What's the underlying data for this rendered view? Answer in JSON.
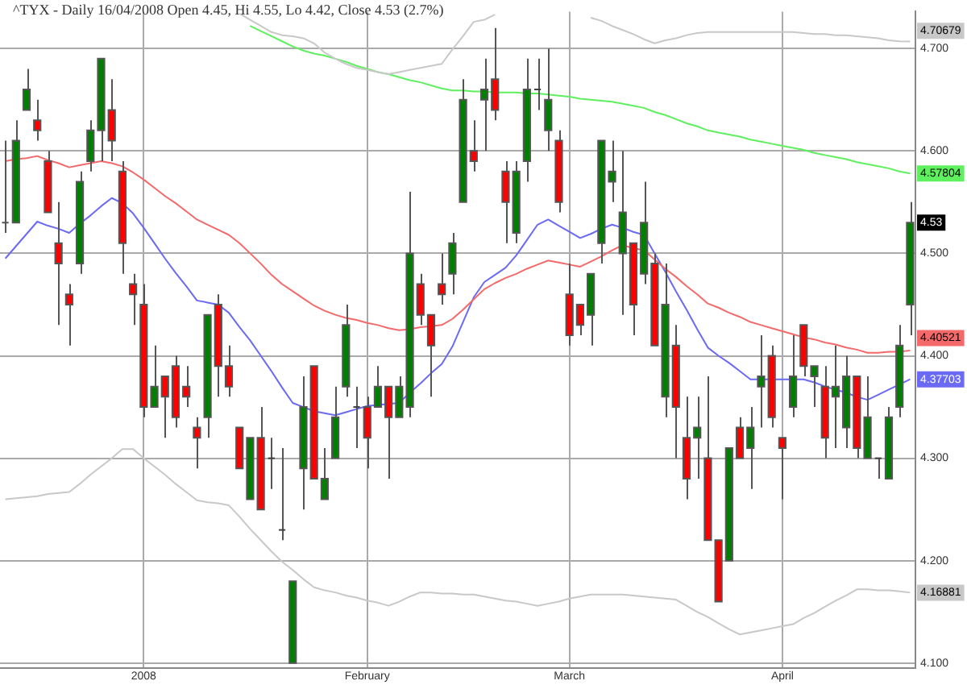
{
  "chart_data": {
    "type": "candlestick",
    "title": "^TYX - Daily 16/04/2008 Open 4.45, Hi 4.55, Lo 4.42, Close 4.53 (2.7%)",
    "categories": [
      null,
      null,
      null,
      null,
      null,
      null,
      null,
      null,
      null,
      null,
      null,
      null,
      null,
      "2008",
      null,
      null,
      null,
      null,
      null,
      null,
      null,
      null,
      null,
      null,
      null,
      null,
      null,
      null,
      null,
      null,
      null,
      null,
      null,
      null,
      "February",
      null,
      null,
      null,
      null,
      null,
      null,
      null,
      null,
      null,
      null,
      null,
      null,
      null,
      null,
      null,
      null,
      null,
      null,
      "March",
      null,
      null,
      null,
      null,
      null,
      null,
      null,
      null,
      null,
      null,
      null,
      null,
      null,
      null,
      null,
      null,
      null,
      null,
      null,
      "April",
      null,
      null,
      null,
      null,
      null,
      null,
      null,
      null,
      null,
      null,
      null,
      null
    ],
    "ohlc": [
      [
        4.53,
        4.61,
        4.52,
        4.53
      ],
      [
        4.53,
        4.63,
        4.53,
        4.61
      ],
      [
        4.64,
        4.68,
        4.64,
        4.66
      ],
      [
        4.63,
        4.65,
        4.61,
        4.62
      ],
      [
        4.59,
        4.6,
        4.54,
        4.54
      ],
      [
        4.51,
        4.55,
        4.43,
        4.49
      ],
      [
        4.46,
        4.47,
        4.41,
        4.45
      ],
      [
        4.49,
        4.58,
        4.48,
        4.57
      ],
      [
        4.59,
        4.63,
        4.58,
        4.62
      ],
      [
        4.62,
        4.69,
        4.59,
        4.69
      ],
      [
        4.64,
        4.67,
        4.59,
        4.61
      ],
      [
        4.58,
        4.59,
        4.48,
        4.51
      ],
      [
        4.47,
        4.48,
        4.43,
        4.46
      ],
      [
        4.45,
        4.47,
        4.34,
        4.35
      ],
      [
        4.35,
        4.41,
        4.35,
        4.37
      ],
      [
        4.38,
        4.38,
        4.32,
        4.36
      ],
      [
        4.39,
        4.4,
        4.33,
        4.34
      ],
      [
        4.37,
        4.39,
        4.35,
        4.36
      ],
      [
        4.33,
        4.34,
        4.29,
        4.32
      ],
      [
        4.34,
        4.44,
        4.32,
        4.44
      ],
      [
        4.45,
        4.46,
        4.36,
        4.39
      ],
      [
        4.39,
        4.41,
        4.36,
        4.37
      ],
      [
        4.33,
        4.33,
        4.29,
        4.29
      ],
      [
        4.26,
        4.32,
        4.26,
        4.32
      ],
      [
        4.32,
        4.35,
        4.25,
        4.25
      ],
      [
        4.3,
        4.32,
        4.27,
        4.3
      ],
      [
        4.23,
        4.31,
        4.22,
        4.23
      ],
      [
        4.1,
        4.18,
        4.1,
        4.18
      ],
      [
        4.29,
        4.38,
        4.25,
        4.35
      ],
      [
        4.39,
        4.39,
        4.28,
        4.28
      ],
      [
        4.26,
        4.31,
        4.26,
        4.28
      ],
      [
        4.3,
        4.37,
        4.3,
        4.34
      ],
      [
        4.37,
        4.45,
        4.36,
        4.43
      ],
      [
        4.35,
        4.37,
        4.31,
        4.35
      ],
      [
        4.35,
        4.36,
        4.29,
        4.32
      ],
      [
        4.35,
        4.39,
        4.35,
        4.37
      ],
      [
        4.37,
        4.37,
        4.28,
        4.34
      ],
      [
        4.34,
        4.38,
        4.34,
        4.37
      ],
      [
        4.35,
        4.56,
        4.34,
        4.5
      ],
      [
        4.47,
        4.48,
        4.43,
        4.44
      ],
      [
        4.44,
        4.44,
        4.36,
        4.41
      ],
      [
        4.47,
        4.5,
        4.45,
        4.46
      ],
      [
        4.48,
        4.52,
        4.46,
        4.51
      ],
      [
        4.55,
        4.67,
        4.55,
        4.65
      ],
      [
        4.6,
        4.63,
        4.58,
        4.59
      ],
      [
        4.65,
        4.69,
        4.6,
        4.66
      ],
      [
        4.67,
        4.72,
        4.63,
        4.64
      ],
      [
        4.58,
        4.59,
        4.51,
        4.55
      ],
      [
        4.52,
        4.59,
        4.51,
        4.58
      ],
      [
        4.59,
        4.69,
        4.57,
        4.66
      ],
      [
        4.66,
        4.69,
        4.64,
        4.66
      ],
      [
        4.62,
        4.7,
        4.6,
        4.65
      ],
      [
        4.61,
        4.62,
        4.54,
        4.55
      ],
      [
        4.46,
        4.49,
        4.41,
        4.42
      ],
      [
        4.45,
        4.45,
        4.42,
        4.43
      ],
      [
        4.44,
        4.48,
        4.41,
        4.48
      ],
      [
        4.51,
        4.61,
        4.49,
        4.61
      ],
      [
        4.57,
        4.61,
        4.55,
        4.58
      ],
      [
        4.5,
        4.6,
        4.44,
        4.54
      ],
      [
        4.51,
        4.51,
        4.42,
        4.45
      ],
      [
        4.48,
        4.57,
        4.47,
        4.53
      ],
      [
        4.49,
        4.5,
        4.41,
        4.41
      ],
      [
        4.36,
        4.49,
        4.34,
        4.45
      ],
      [
        4.41,
        4.43,
        4.3,
        4.35
      ],
      [
        4.32,
        4.36,
        4.26,
        4.28
      ],
      [
        4.32,
        4.36,
        4.28,
        4.33
      ],
      [
        4.3,
        4.38,
        4.22,
        4.22
      ],
      [
        4.22,
        4.22,
        4.16,
        4.16
      ],
      [
        4.2,
        4.31,
        4.2,
        4.31
      ],
      [
        4.33,
        4.34,
        4.3,
        4.3
      ],
      [
        4.31,
        4.35,
        4.27,
        4.33
      ],
      [
        4.37,
        4.42,
        4.33,
        4.38
      ],
      [
        4.4,
        4.41,
        4.33,
        4.34
      ],
      [
        4.32,
        4.32,
        4.26,
        4.31
      ],
      [
        4.35,
        4.42,
        4.34,
        4.38
      ],
      [
        4.43,
        4.43,
        4.38,
        4.39
      ],
      [
        4.38,
        4.39,
        4.35,
        4.39
      ],
      [
        4.37,
        4.39,
        4.3,
        4.32
      ],
      [
        4.36,
        4.41,
        4.31,
        4.37
      ],
      [
        4.33,
        4.4,
        4.31,
        4.38
      ],
      [
        4.38,
        4.38,
        4.3,
        4.31
      ],
      [
        4.3,
        4.38,
        4.3,
        4.34
      ],
      [
        4.3,
        4.3,
        4.28,
        4.3
      ],
      [
        4.28,
        4.35,
        4.28,
        4.34
      ],
      [
        4.35,
        4.43,
        4.34,
        4.41
      ],
      [
        4.45,
        4.55,
        4.42,
        4.53
      ]
    ],
    "colors": [
      "#555555",
      "#008000",
      "#008000",
      "#ff0000",
      "#ff0000",
      "#ff0000",
      "#ff0000",
      "#008000",
      "#008000",
      "#008000",
      "#ff0000",
      "#ff0000",
      "#ff0000",
      "#ff0000",
      "#008000",
      "#ff0000",
      "#ff0000",
      "#ff0000",
      "#ff0000",
      "#008000",
      "#ff0000",
      "#ff0000",
      "#ff0000",
      "#008000",
      "#ff0000",
      "#404040",
      "#404040",
      "#008000",
      "#008000",
      "#ff0000",
      "#008000",
      "#008000",
      "#008000",
      "#404040",
      "#ff0000",
      "#008000",
      "#ff0000",
      "#008000",
      "#008000",
      "#ff0000",
      "#ff0000",
      "#ff0000",
      "#008000",
      "#008000",
      "#ff0000",
      "#008000",
      "#ff0000",
      "#ff0000",
      "#008000",
      "#008000",
      "#404040",
      "#008000",
      "#ff0000",
      "#ff0000",
      "#ff0000",
      "#008000",
      "#008000",
      "#008000",
      "#008000",
      "#ff0000",
      "#008000",
      "#ff0000",
      "#008000",
      "#ff0000",
      "#ff0000",
      "#008000",
      "#ff0000",
      "#ff0000",
      "#008000",
      "#ff0000",
      "#008000",
      "#008000",
      "#ff0000",
      "#ff0000",
      "#008000",
      "#ff0000",
      "#008000",
      "#ff0000",
      "#008000",
      "#008000",
      "#ff0000",
      "#008000",
      "#404040",
      "#008000",
      "#008000",
      "#008000"
    ],
    "value_labels": [
      null,
      null,
      null,
      null,
      null,
      null,
      null,
      null,
      null,
      null,
      null,
      null,
      null,
      null,
      null,
      null,
      null,
      null,
      null,
      null,
      null,
      null,
      null,
      null,
      null,
      null,
      null,
      null,
      null,
      null,
      null,
      null,
      null,
      null,
      null,
      null,
      null,
      null,
      null,
      null,
      null,
      null,
      null,
      null,
      null,
      null,
      null,
      null,
      null,
      null,
      null,
      null,
      null,
      null,
      null,
      null,
      null,
      null,
      null,
      null,
      null,
      null,
      null,
      null,
      null,
      null,
      null,
      null,
      null,
      null,
      null,
      null,
      null,
      null,
      null,
      null,
      null,
      null,
      null,
      null,
      null,
      null,
      null,
      null,
      null,
      "4.53"
    ],
    "series": [
      {
        "type": "line",
        "color": "#c8c8c8",
        "values": [
          null,
          null,
          null,
          null,
          null,
          null,
          null,
          null,
          null,
          null,
          null,
          null,
          null,
          null,
          null,
          null,
          null,
          null,
          null,
          null,
          null,
          null,
          4.734,
          4.728,
          4.722,
          4.716,
          4.713,
          4.712,
          4.71,
          4.705,
          4.696,
          4.69,
          4.685,
          4.681,
          4.679,
          4.677,
          4.675,
          4.677,
          4.679,
          4.681,
          4.683,
          4.685,
          4.699,
          4.712,
          4.726,
          4.728,
          4.733,
          null,
          null,
          null,
          null,
          null,
          null,
          null,
          null,
          4.73,
          4.727,
          4.722,
          4.718,
          4.714,
          4.709,
          4.705,
          4.708,
          4.71,
          4.713,
          4.715,
          4.716,
          4.716,
          4.716,
          4.716,
          4.716,
          4.716,
          4.716,
          4.716,
          4.716,
          4.715,
          4.714,
          4.714,
          4.713,
          4.713,
          4.712,
          4.711,
          4.71,
          4.708,
          4.707,
          4.70679
        ],
        "value_labels": [
          null,
          null,
          null,
          null,
          null,
          null,
          null,
          null,
          null,
          null,
          null,
          null,
          null,
          null,
          null,
          null,
          null,
          null,
          null,
          null,
          null,
          null,
          null,
          null,
          null,
          null,
          null,
          null,
          null,
          null,
          null,
          null,
          null,
          null,
          null,
          null,
          null,
          null,
          null,
          null,
          null,
          null,
          null,
          null,
          null,
          null,
          null,
          null,
          null,
          null,
          null,
          null,
          null,
          null,
          null,
          null,
          null,
          null,
          null,
          null,
          null,
          null,
          null,
          null,
          null,
          null,
          null,
          null,
          null,
          null,
          null,
          null,
          null,
          null,
          null,
          null,
          null,
          null,
          null,
          null,
          null,
          null,
          null,
          null,
          null,
          "4.70679"
        ]
      },
      {
        "type": "line",
        "color": "#5ef05e",
        "values": [
          null,
          null,
          null,
          null,
          null,
          null,
          null,
          null,
          null,
          null,
          null,
          null,
          null,
          null,
          null,
          null,
          null,
          null,
          null,
          null,
          null,
          null,
          null,
          4.722,
          4.717,
          4.712,
          4.707,
          4.702,
          4.698,
          4.695,
          4.693,
          4.69,
          4.687,
          4.683,
          4.68,
          4.677,
          4.675,
          4.672,
          4.669,
          4.667,
          4.664,
          4.661,
          4.659,
          4.659,
          4.658,
          4.658,
          4.657,
          4.657,
          4.657,
          4.656,
          4.656,
          4.655,
          4.654,
          4.653,
          4.651,
          4.65,
          4.649,
          4.648,
          4.646,
          4.644,
          4.642,
          4.638,
          4.635,
          4.631,
          4.627,
          4.624,
          4.62,
          4.618,
          4.616,
          4.614,
          4.611,
          4.609,
          4.607,
          4.605,
          4.603,
          4.601,
          4.598,
          4.596,
          4.594,
          4.592,
          4.589,
          4.587,
          4.585,
          4.583,
          4.58,
          4.57804
        ],
        "value_labels": [
          null,
          null,
          null,
          null,
          null,
          null,
          null,
          null,
          null,
          null,
          null,
          null,
          null,
          null,
          null,
          null,
          null,
          null,
          null,
          null,
          null,
          null,
          null,
          null,
          null,
          null,
          null,
          null,
          null,
          null,
          null,
          null,
          null,
          null,
          null,
          null,
          null,
          null,
          null,
          null,
          null,
          null,
          null,
          null,
          null,
          null,
          null,
          null,
          null,
          null,
          null,
          null,
          null,
          null,
          null,
          null,
          null,
          null,
          null,
          null,
          null,
          null,
          null,
          null,
          null,
          null,
          null,
          null,
          null,
          null,
          null,
          null,
          null,
          null,
          null,
          null,
          null,
          null,
          null,
          null,
          null,
          null,
          null,
          null,
          null,
          "4.57804"
        ]
      },
      {
        "type": "line",
        "color": "#f46a6a",
        "values": [
          4.59,
          4.592,
          4.593,
          4.595,
          4.591,
          4.588,
          4.584,
          4.586,
          4.588,
          4.59,
          4.588,
          4.585,
          4.579,
          4.572,
          4.564,
          4.556,
          4.549,
          4.541,
          4.533,
          4.528,
          4.523,
          4.518,
          4.51,
          4.5,
          4.49,
          4.479,
          4.47,
          4.463,
          4.456,
          4.449,
          4.444,
          4.44,
          4.437,
          4.435,
          4.432,
          4.43,
          4.427,
          4.425,
          4.426,
          4.428,
          4.429,
          4.43,
          4.436,
          4.445,
          4.455,
          4.465,
          4.471,
          4.476,
          4.48,
          4.485,
          4.489,
          4.493,
          4.491,
          4.489,
          4.487,
          4.492,
          4.497,
          4.503,
          4.508,
          4.505,
          4.503,
          4.494,
          4.485,
          4.477,
          4.468,
          4.46,
          4.451,
          4.447,
          4.442,
          4.438,
          4.433,
          4.43,
          4.427,
          4.424,
          4.421,
          4.418,
          4.416,
          4.413,
          4.411,
          4.408,
          4.406,
          4.403,
          4.403,
          4.404,
          4.404,
          4.40521
        ],
        "value_labels": [
          null,
          null,
          null,
          null,
          null,
          null,
          null,
          null,
          null,
          null,
          null,
          null,
          null,
          null,
          null,
          null,
          null,
          null,
          null,
          null,
          null,
          null,
          null,
          null,
          null,
          null,
          null,
          null,
          null,
          null,
          null,
          null,
          null,
          null,
          null,
          null,
          null,
          null,
          null,
          null,
          null,
          null,
          null,
          null,
          null,
          null,
          null,
          null,
          null,
          null,
          null,
          null,
          null,
          null,
          null,
          null,
          null,
          null,
          null,
          null,
          null,
          null,
          null,
          null,
          null,
          null,
          null,
          null,
          null,
          null,
          null,
          null,
          null,
          null,
          null,
          null,
          null,
          null,
          null,
          null,
          null,
          null,
          null,
          null,
          null,
          "4.40521"
        ]
      },
      {
        "type": "line",
        "color": "#6a6af4",
        "values": [
          4.495,
          4.507,
          4.519,
          4.531,
          4.527,
          4.524,
          4.52,
          4.529,
          4.537,
          4.546,
          4.554,
          4.549,
          4.539,
          4.525,
          4.51,
          4.495,
          4.481,
          4.468,
          4.454,
          4.452,
          4.45,
          4.442,
          4.428,
          4.415,
          4.4,
          4.385,
          4.369,
          4.354,
          4.35,
          4.346,
          4.344,
          4.342,
          4.345,
          4.348,
          4.351,
          4.352,
          4.353,
          4.354,
          4.364,
          4.373,
          4.383,
          4.392,
          4.409,
          4.433,
          4.457,
          4.472,
          4.479,
          4.486,
          4.498,
          4.513,
          4.528,
          4.533,
          4.527,
          4.521,
          4.515,
          4.519,
          4.524,
          4.528,
          4.525,
          4.521,
          4.518,
          4.5,
          4.482,
          4.463,
          4.445,
          4.426,
          4.408,
          4.4,
          4.393,
          4.385,
          4.377,
          4.377,
          4.377,
          4.377,
          4.377,
          4.377,
          4.374,
          4.37,
          4.367,
          4.364,
          4.36,
          4.357,
          4.362,
          4.367,
          4.372,
          4.37703
        ],
        "value_labels": [
          null,
          null,
          null,
          null,
          null,
          null,
          null,
          null,
          null,
          null,
          null,
          null,
          null,
          null,
          null,
          null,
          null,
          null,
          null,
          null,
          null,
          null,
          null,
          null,
          null,
          null,
          null,
          null,
          null,
          null,
          null,
          null,
          null,
          null,
          null,
          null,
          null,
          null,
          null,
          null,
          null,
          null,
          null,
          null,
          null,
          null,
          null,
          null,
          null,
          null,
          null,
          null,
          null,
          null,
          null,
          null,
          null,
          null,
          null,
          null,
          null,
          null,
          null,
          null,
          null,
          null,
          null,
          null,
          null,
          null,
          null,
          null,
          null,
          null,
          null,
          null,
          null,
          null,
          null,
          null,
          null,
          null,
          null,
          null,
          null,
          "4.37703"
        ]
      },
      {
        "type": "line",
        "color": "#c8c8c8",
        "values": [
          4.26,
          4.261,
          4.262,
          4.263,
          4.265,
          4.266,
          4.267,
          4.275,
          4.284,
          4.292,
          4.3,
          4.309,
          4.309,
          4.3,
          4.292,
          4.284,
          4.275,
          4.267,
          4.259,
          4.257,
          4.256,
          4.254,
          4.243,
          4.231,
          4.22,
          4.209,
          4.199,
          4.191,
          4.182,
          4.174,
          4.171,
          4.169,
          4.166,
          4.164,
          4.161,
          4.159,
          4.156,
          4.16,
          4.165,
          4.169,
          4.169,
          4.168,
          4.168,
          4.167,
          4.167,
          4.165,
          4.163,
          4.161,
          4.16,
          4.158,
          4.156,
          4.158,
          4.16,
          4.163,
          4.165,
          4.167,
          4.167,
          4.167,
          4.167,
          4.166,
          4.165,
          4.164,
          4.163,
          4.162,
          4.156,
          4.15,
          4.145,
          4.139,
          4.133,
          4.128,
          4.13,
          4.132,
          4.134,
          4.136,
          4.138,
          4.144,
          4.149,
          4.155,
          4.161,
          4.166,
          4.172,
          4.172,
          4.171,
          4.171,
          4.17,
          4.16881
        ],
        "value_labels": [
          null,
          null,
          null,
          null,
          null,
          null,
          null,
          null,
          null,
          null,
          null,
          null,
          null,
          null,
          null,
          null,
          null,
          null,
          null,
          null,
          null,
          null,
          null,
          null,
          null,
          null,
          null,
          null,
          null,
          null,
          null,
          null,
          null,
          null,
          null,
          null,
          null,
          null,
          null,
          null,
          null,
          null,
          null,
          null,
          null,
          null,
          null,
          null,
          null,
          null,
          null,
          null,
          null,
          null,
          null,
          null,
          null,
          null,
          null,
          null,
          null,
          null,
          null,
          null,
          null,
          null,
          null,
          null,
          null,
          null,
          null,
          null,
          null,
          null,
          null,
          null,
          null,
          null,
          null,
          null,
          null,
          null,
          null,
          null,
          null,
          "4.16881"
        ]
      }
    ],
    "ylim": [
      4.095,
      4.736
    ],
    "yticks": [
      {
        "value": 4.1,
        "label": "4.100"
      },
      {
        "value": 4.2,
        "label": "4.200"
      },
      {
        "value": 4.3,
        "label": "4.300"
      },
      {
        "value": 4.4,
        "label": "4.400"
      },
      {
        "value": 4.5,
        "label": "4.500"
      },
      {
        "value": 4.6,
        "label": "4.600"
      },
      {
        "value": 4.7,
        "label": "4.700"
      }
    ],
    "grid": true,
    "legend": false,
    "marker": "none"
  }
}
